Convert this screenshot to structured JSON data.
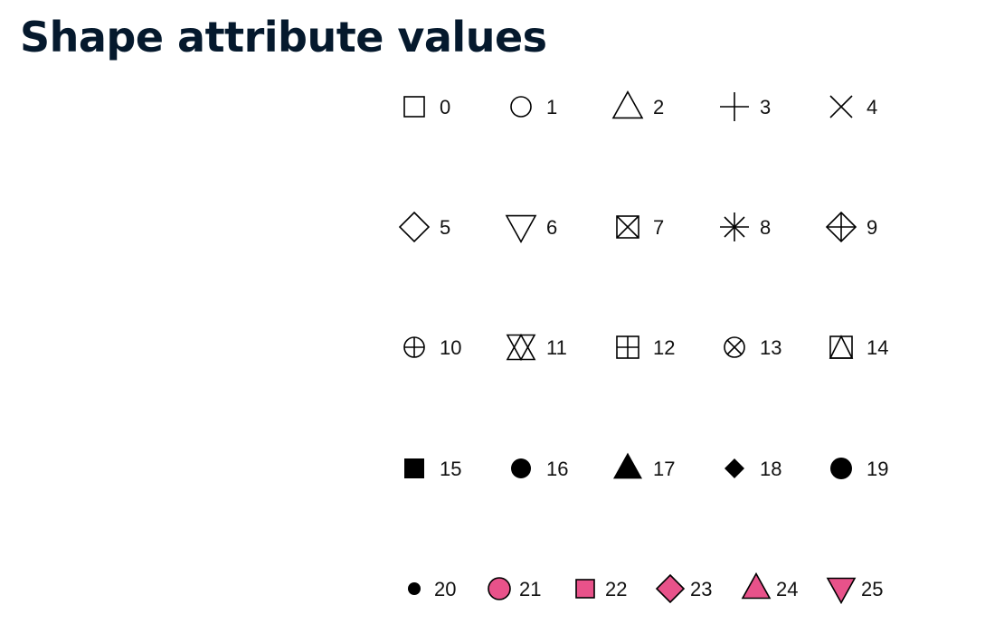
{
  "header": {
    "title": "Shape attribute values"
  },
  "style": {
    "fill_color": "#e8528a",
    "stroke_color": "#000000"
  },
  "chart_data": {
    "type": "table",
    "description": "Point shape codes 0-25",
    "rows": [
      [
        {
          "code": 0,
          "label": "0",
          "icon": "open-square"
        },
        {
          "code": 1,
          "label": "1",
          "icon": "open-circle"
        },
        {
          "code": 2,
          "label": "2",
          "icon": "open-triangle"
        },
        {
          "code": 3,
          "label": "3",
          "icon": "plus"
        },
        {
          "code": 4,
          "label": "4",
          "icon": "cross"
        }
      ],
      [
        {
          "code": 5,
          "label": "5",
          "icon": "open-diamond"
        },
        {
          "code": 6,
          "label": "6",
          "icon": "open-triangle-down"
        },
        {
          "code": 7,
          "label": "7",
          "icon": "square-cross"
        },
        {
          "code": 8,
          "label": "8",
          "icon": "asterisk"
        },
        {
          "code": 9,
          "label": "9",
          "icon": "diamond-plus"
        }
      ],
      [
        {
          "code": 10,
          "label": "10",
          "icon": "circle-plus"
        },
        {
          "code": 11,
          "label": "11",
          "icon": "star-of-david"
        },
        {
          "code": 12,
          "label": "12",
          "icon": "square-plus"
        },
        {
          "code": 13,
          "label": "13",
          "icon": "circle-cross"
        },
        {
          "code": 14,
          "label": "14",
          "icon": "square-triangle"
        }
      ],
      [
        {
          "code": 15,
          "label": "15",
          "icon": "filled-square"
        },
        {
          "code": 16,
          "label": "16",
          "icon": "filled-circle"
        },
        {
          "code": 17,
          "label": "17",
          "icon": "filled-triangle"
        },
        {
          "code": 18,
          "label": "18",
          "icon": "filled-diamond"
        },
        {
          "code": 19,
          "label": "19",
          "icon": "filled-circle-large"
        }
      ],
      [
        {
          "code": 20,
          "label": "20",
          "icon": "small-dot"
        },
        {
          "code": 21,
          "label": "21",
          "icon": "fill-circle"
        },
        {
          "code": 22,
          "label": "22",
          "icon": "fill-square"
        },
        {
          "code": 23,
          "label": "23",
          "icon": "fill-diamond"
        },
        {
          "code": 24,
          "label": "24",
          "icon": "fill-triangle"
        },
        {
          "code": 25,
          "label": "25",
          "icon": "fill-triangle-down"
        }
      ]
    ]
  }
}
